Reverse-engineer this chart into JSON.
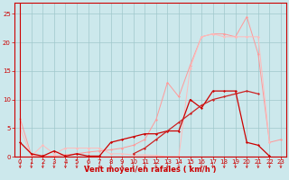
{
  "x": [
    0,
    1,
    2,
    3,
    4,
    5,
    6,
    7,
    8,
    9,
    10,
    11,
    12,
    13,
    14,
    15,
    16,
    17,
    18,
    19,
    20,
    21,
    22,
    23
  ],
  "line1": [
    6.7,
    0.2,
    0.1,
    0.1,
    0.3,
    0.5,
    0.8,
    1.0,
    1.2,
    1.5,
    2.0,
    3.0,
    6.5,
    13.0,
    10.5,
    16.0,
    21.0,
    21.5,
    21.5,
    21.0,
    24.5,
    18.0,
    2.5,
    3.0
  ],
  "line2": [
    5.0,
    0.1,
    2.0,
    0.5,
    1.5,
    1.5,
    1.5,
    1.5,
    0.5,
    0.5,
    0.3,
    0.3,
    0.2,
    0.0,
    0.0,
    15.5,
    21.0,
    21.5,
    21.0,
    21.0,
    21.0,
    21.0,
    2.5,
    null
  ],
  "line3": [
    2.5,
    0.5,
    0.1,
    1.0,
    0.1,
    0.5,
    0.1,
    0.1,
    2.5,
    3.0,
    3.5,
    4.0,
    4.0,
    4.5,
    4.5,
    10.0,
    8.5,
    11.5,
    11.5,
    11.5,
    2.5,
    2.0,
    0.1,
    null
  ],
  "line4": [
    null,
    null,
    null,
    null,
    null,
    null,
    null,
    null,
    null,
    null,
    0.5,
    1.5,
    3.0,
    4.5,
    6.0,
    7.5,
    9.0,
    10.0,
    10.5,
    11.0,
    11.5,
    11.0,
    null,
    null
  ],
  "bg_color": "#cce8ec",
  "grid_color": "#a0c8cc",
  "line1_color": "#ff9999",
  "line2_color": "#ffbbbb",
  "line3_color": "#cc0000",
  "line4_color": "#cc2222",
  "xlabel": "Vent moyen/en rafales ( km/h )",
  "ylim": [
    0,
    27
  ],
  "xlim": [
    -0.5,
    23.5
  ],
  "yticks": [
    0,
    5,
    10,
    15,
    20,
    25
  ],
  "xticks": [
    0,
    1,
    2,
    3,
    4,
    5,
    6,
    7,
    8,
    9,
    10,
    11,
    12,
    13,
    14,
    15,
    16,
    17,
    18,
    19,
    20,
    21,
    22,
    23
  ]
}
